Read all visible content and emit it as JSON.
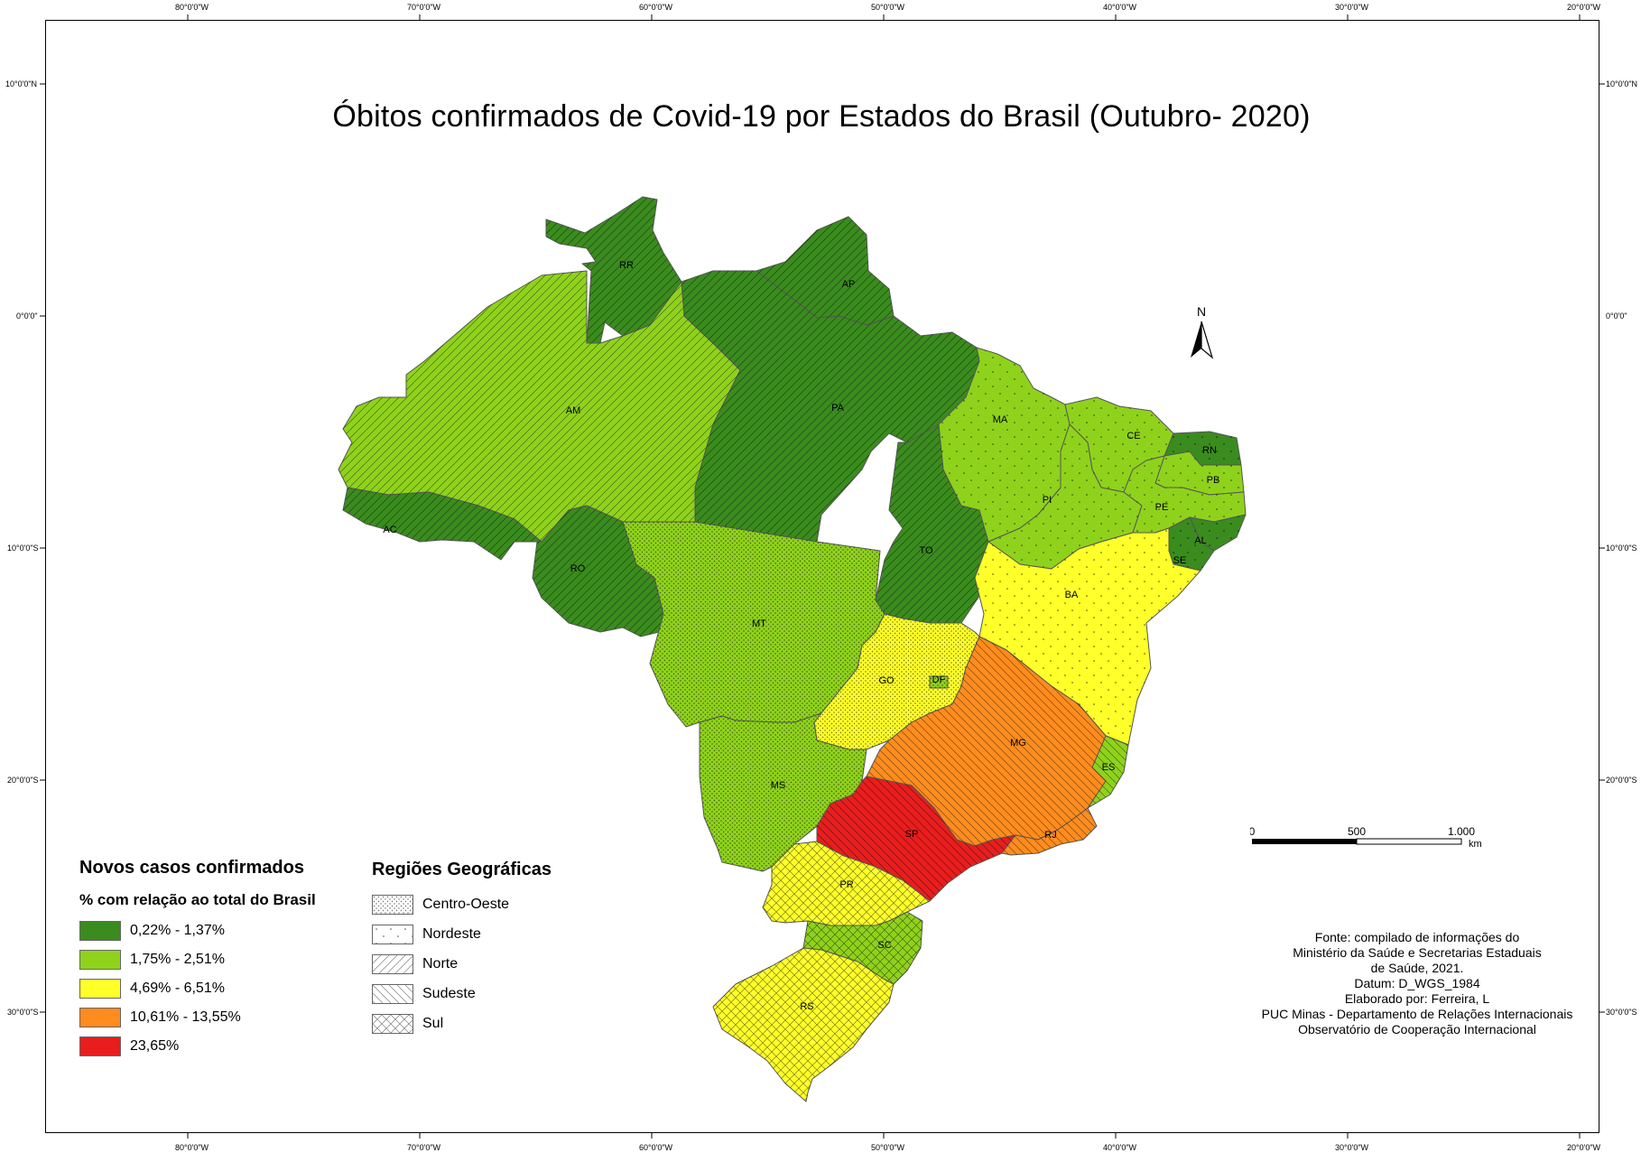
{
  "title": "Óbitos confirmados de Covid-19 por Estados do Brasil (Outubro- 2020)",
  "graticule": {
    "top_lon": [
      "80°0'0\"W",
      "70°0'0\"W",
      "60°0'0\"W",
      "50°0'0\"W",
      "40°0'0\"W",
      "30°0'0\"W",
      "20°0'0\"W"
    ],
    "bottom_lon": [
      "80°0'0\"W",
      "70°0'0\"W",
      "60°0'0\"W",
      "50°0'0\"W",
      "40°0'0\"W",
      "30°0'0\"W",
      "20°0'0\"W"
    ],
    "left_lat": [
      "10°0'0\"N",
      "0°0'0\"",
      "10°0'0\"S",
      "20°0'0\"S",
      "30°0'0\"S"
    ],
    "right_lat": [
      "10°0'0\"N",
      "0°0'0\"",
      "10°0'0\"S",
      "20°0'0\"S",
      "30°0'0\"S"
    ]
  },
  "legend_cases": {
    "title": "Novos casos confirmados",
    "subtitle": "% com relação ao total do Brasil",
    "classes": [
      {
        "label": "0,22% - 1,37%",
        "color": "#3a8c1e"
      },
      {
        "label": "1,75% - 2,51%",
        "color": "#8fd21c"
      },
      {
        "label": "4,69% - 6,51%",
        "color": "#ffff2a"
      },
      {
        "label": "10,61% - 13,55%",
        "color": "#ff8c1e"
      },
      {
        "label": "23,65%",
        "color": "#e81e1e"
      }
    ]
  },
  "legend_regions": {
    "title": "Regiões Geográficas",
    "items": [
      {
        "label": "Centro-Oeste",
        "pattern": "dots"
      },
      {
        "label": "Nordeste",
        "pattern": "sparse-dots"
      },
      {
        "label": "Norte",
        "pattern": "diag-right"
      },
      {
        "label": "Sudeste",
        "pattern": "diag-left"
      },
      {
        "label": "Sul",
        "pattern": "crosshatch"
      }
    ]
  },
  "states": [
    {
      "abbr": "RR",
      "color": "#3a8c1e",
      "pattern": "diag-right"
    },
    {
      "abbr": "AP",
      "color": "#3a8c1e",
      "pattern": "diag-right"
    },
    {
      "abbr": "AM",
      "color": "#8fd21c",
      "pattern": "diag-right"
    },
    {
      "abbr": "PA",
      "color": "#3a8c1e",
      "pattern": "diag-right"
    },
    {
      "abbr": "AC",
      "color": "#3a8c1e",
      "pattern": "diag-right"
    },
    {
      "abbr": "RO",
      "color": "#3a8c1e",
      "pattern": "diag-right"
    },
    {
      "abbr": "TO",
      "color": "#3a8c1e",
      "pattern": "diag-right"
    },
    {
      "abbr": "MA",
      "color": "#8fd21c",
      "pattern": "sparse-dots"
    },
    {
      "abbr": "CE",
      "color": "#8fd21c",
      "pattern": "sparse-dots"
    },
    {
      "abbr": "RN",
      "color": "#3a8c1e",
      "pattern": "sparse-dots"
    },
    {
      "abbr": "PB",
      "color": "#8fd21c",
      "pattern": "sparse-dots"
    },
    {
      "abbr": "PI",
      "color": "#8fd21c",
      "pattern": "sparse-dots"
    },
    {
      "abbr": "PE",
      "color": "#8fd21c",
      "pattern": "sparse-dots"
    },
    {
      "abbr": "AL",
      "color": "#3a8c1e",
      "pattern": "sparse-dots"
    },
    {
      "abbr": "SE",
      "color": "#3a8c1e",
      "pattern": "sparse-dots"
    },
    {
      "abbr": "BA",
      "color": "#ffff2a",
      "pattern": "sparse-dots"
    },
    {
      "abbr": "MT",
      "color": "#8fd21c",
      "pattern": "dots"
    },
    {
      "abbr": "GO",
      "color": "#ffff2a",
      "pattern": "dots"
    },
    {
      "abbr": "DF",
      "color": "#8fd21c",
      "pattern": "dots"
    },
    {
      "abbr": "MS",
      "color": "#8fd21c",
      "pattern": "dots"
    },
    {
      "abbr": "MG",
      "color": "#ff8c1e",
      "pattern": "diag-left"
    },
    {
      "abbr": "ES",
      "color": "#8fd21c",
      "pattern": "diag-left"
    },
    {
      "abbr": "SP",
      "color": "#e81e1e",
      "pattern": "diag-left"
    },
    {
      "abbr": "RJ",
      "color": "#ff8c1e",
      "pattern": "diag-left"
    },
    {
      "abbr": "PR",
      "color": "#ffff2a",
      "pattern": "crosshatch"
    },
    {
      "abbr": "SC",
      "color": "#8fd21c",
      "pattern": "crosshatch"
    },
    {
      "abbr": "RS",
      "color": "#ffff2a",
      "pattern": "crosshatch"
    }
  ],
  "north_arrow": {
    "label": "N"
  },
  "scale_bar": {
    "ticks": [
      "0",
      "500",
      "1.000"
    ],
    "unit": "km"
  },
  "source_lines": [
    "Fonte: compilado de informações do",
    "Ministério da Saúde e Secretarias Estaduais",
    "de Saúde, 2021.",
    "Datum: D_WGS_1984",
    "Elaborado por: Ferreira, L",
    "PUC Minas - Departamento de Relações Internacionais",
    "Observatório de Cooperação Internacional"
  ]
}
